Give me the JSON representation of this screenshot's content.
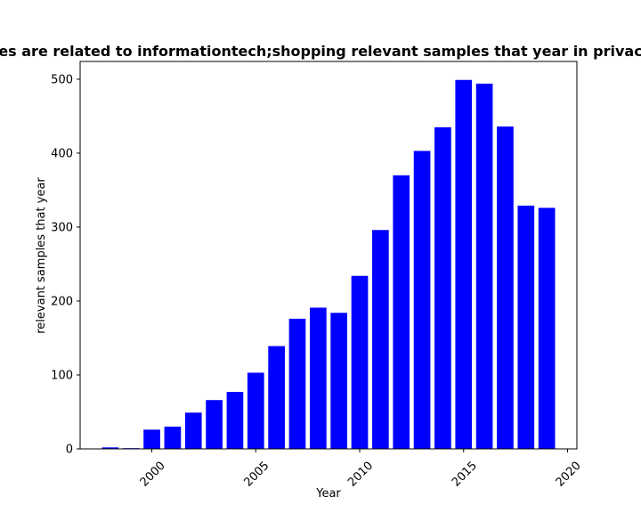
{
  "chart_data": {
    "type": "bar",
    "title": "es are related to informationtech;shopping relevant samples that year in privac",
    "xlabel": "Year",
    "ylabel": "relevant samples that year",
    "x": [
      1998,
      1999,
      2000,
      2001,
      2002,
      2003,
      2004,
      2005,
      2006,
      2007,
      2008,
      2009,
      2010,
      2011,
      2012,
      2013,
      2014,
      2015,
      2016,
      2017,
      2018,
      2019
    ],
    "values": [
      2,
      1,
      26,
      30,
      49,
      66,
      77,
      103,
      139,
      176,
      191,
      184,
      234,
      296,
      370,
      403,
      435,
      499,
      494,
      436,
      329,
      326
    ],
    "xlim": [
      1996.55,
      2020.45
    ],
    "ylim": [
      0,
      524
    ],
    "xticks": [
      2000,
      2005,
      2010,
      2015,
      2020
    ],
    "yticks": [
      0,
      100,
      200,
      300,
      400,
      500
    ],
    "bar_color": "#0000ff",
    "grid": false,
    "legend": "none"
  }
}
